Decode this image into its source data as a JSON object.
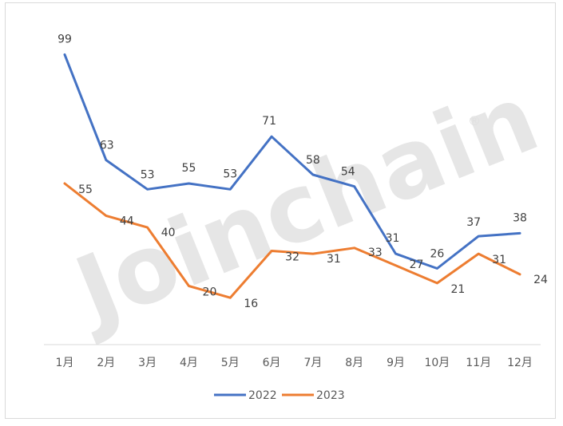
{
  "watermark": {
    "text": "Joinchain",
    "mark": "®"
  },
  "colors": {
    "s2022": "#4472C4",
    "s2023": "#ED7D31",
    "axis": "#d9d9d9"
  },
  "chart_data": {
    "type": "line",
    "title": "",
    "xlabel": "",
    "ylabel": "",
    "categories": [
      "1月",
      "2月",
      "3月",
      "4月",
      "5月",
      "6月",
      "7月",
      "8月",
      "9月",
      "10月",
      "11月",
      "12月"
    ],
    "ylim": [
      0,
      110
    ],
    "grid": false,
    "legend_position": "bottom",
    "series": [
      {
        "name": "2022",
        "values": [
          99,
          63,
          53,
          55,
          53,
          71,
          58,
          54,
          31,
          26,
          37,
          38
        ]
      },
      {
        "name": "2023",
        "values": [
          55,
          44,
          40,
          20,
          16,
          32,
          31,
          33,
          27,
          21,
          31,
          24
        ]
      }
    ]
  }
}
